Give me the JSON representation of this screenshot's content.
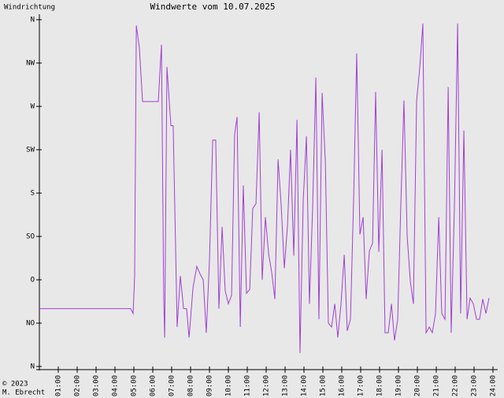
{
  "chart_data": {
    "type": "line",
    "title": "Windwerte vom 10.07.2025",
    "y_label": "Windrichtung",
    "footer": [
      "© 2023",
      "M. Ebrecht"
    ],
    "color": "#a040d0",
    "xlim": [
      0,
      24
    ],
    "xticks": [
      {
        "value": 1,
        "label": "01:00"
      },
      {
        "value": 2,
        "label": "02:00"
      },
      {
        "value": 3,
        "label": "03:00"
      },
      {
        "value": 4,
        "label": "04:00"
      },
      {
        "value": 5,
        "label": "05:00"
      },
      {
        "value": 6,
        "label": "06:00"
      },
      {
        "value": 7,
        "label": "07:00"
      },
      {
        "value": 8,
        "label": "08:00"
      },
      {
        "value": 9,
        "label": "09:00"
      },
      {
        "value": 10,
        "label": "10:00"
      },
      {
        "value": 11,
        "label": "11:00"
      },
      {
        "value": 12,
        "label": "12:00"
      },
      {
        "value": 13,
        "label": "13:00"
      },
      {
        "value": 14,
        "label": "14:00"
      },
      {
        "value": 15,
        "label": "15:00"
      },
      {
        "value": 16,
        "label": "16:00"
      },
      {
        "value": 17,
        "label": "17:00"
      },
      {
        "value": 18,
        "label": "18:00"
      },
      {
        "value": 19,
        "label": "19:00"
      },
      {
        "value": 20,
        "label": "20:00"
      },
      {
        "value": 21,
        "label": "21:00"
      },
      {
        "value": 22,
        "label": "22:00"
      },
      {
        "value": 23,
        "label": "23:00"
      },
      {
        "value": 24,
        "label": "24:00"
      }
    ],
    "ylim": [
      0,
      360
    ],
    "yticks": [
      {
        "value": 360,
        "label": "N"
      },
      {
        "value": 315,
        "label": "NW"
      },
      {
        "value": 270,
        "label": "W"
      },
      {
        "value": 225,
        "label": "SW"
      },
      {
        "value": 180,
        "label": "S"
      },
      {
        "value": 135,
        "label": "SO"
      },
      {
        "value": 90,
        "label": "O"
      },
      {
        "value": 45,
        "label": "NO"
      },
      {
        "value": 0,
        "label": "N"
      }
    ],
    "x": [
      0,
      4.83,
      4.96,
      5.04,
      5.13,
      5.29,
      5.46,
      6.29,
      6.46,
      6.58,
      6.63,
      6.75,
      6.96,
      7.08,
      7.29,
      7.46,
      7.63,
      7.79,
      7.92,
      8.13,
      8.33,
      8.5,
      8.67,
      8.83,
      9.0,
      9.17,
      9.33,
      9.5,
      9.67,
      9.83,
      10.0,
      10.17,
      10.33,
      10.46,
      10.63,
      10.79,
      10.96,
      11.13,
      11.29,
      11.46,
      11.63,
      11.79,
      11.96,
      12.13,
      12.29,
      12.46,
      12.63,
      12.79,
      12.96,
      13.13,
      13.29,
      13.46,
      13.63,
      13.79,
      13.96,
      14.13,
      14.29,
      14.46,
      14.63,
      14.79,
      14.96,
      15.13,
      15.29,
      15.46,
      15.63,
      15.79,
      15.96,
      16.13,
      16.29,
      16.46,
      16.63,
      16.79,
      16.96,
      17.13,
      17.29,
      17.46,
      17.63,
      17.79,
      17.96,
      18.13,
      18.29,
      18.46,
      18.63,
      18.79,
      18.96,
      19.13,
      19.29,
      19.46,
      19.63,
      19.79,
      19.96,
      20.13,
      20.29,
      20.46,
      20.63,
      20.79,
      20.96,
      21.13,
      21.29,
      21.46,
      21.63,
      21.79,
      21.96,
      22.13,
      22.29,
      22.46,
      22.63,
      22.79,
      22.96,
      23.13,
      23.29,
      23.46,
      23.63,
      23.79
    ],
    "values": [
      60,
      60,
      55,
      94,
      354,
      331,
      275,
      275,
      334,
      70,
      30,
      311,
      250,
      250,
      41,
      94,
      60,
      60,
      30,
      82,
      104,
      96,
      90,
      35,
      110,
      235,
      235,
      60,
      145,
      79,
      65,
      74,
      241,
      259,
      41,
      188,
      76,
      80,
      164,
      169,
      264,
      90,
      155,
      117,
      98,
      70,
      215,
      169,
      102,
      147,
      225,
      115,
      256,
      14,
      172,
      239,
      65,
      166,
      300,
      49,
      284,
      213,
      45,
      41,
      65,
      30,
      65,
      116,
      37,
      49,
      176,
      325,
      137,
      155,
      70,
      120,
      128,
      285,
      119,
      225,
      35,
      35,
      65,
      27,
      49,
      172,
      276,
      135,
      88,
      65,
      276,
      311,
      356,
      35,
      41,
      35,
      55,
      155,
      55,
      49,
      290,
      35,
      166,
      356,
      55,
      245,
      49,
      71,
      65,
      49,
      49,
      70,
      55,
      71
    ]
  }
}
